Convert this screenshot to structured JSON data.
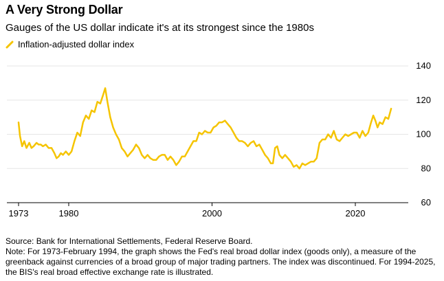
{
  "header": {
    "title": "A Very Strong Dollar",
    "subtitle": "Gauges of the US dollar indicate it's at its strongest since the 1980s"
  },
  "footer": {
    "source": "Source: Bank for International Settlements, Federal Reserve Board.",
    "note": "Note: For 1973-February 1994, the graph shows the Fed's real broad dollar index (goods only), a measure of the greenback against currencies of a broad group of major trading partners. The index was discontinued. For 1994-2025, the BIS's real broad effective exchange rate is illustrated."
  },
  "colors": {
    "line": "#f5c400",
    "grid": "#e6e6e6",
    "axis": "#000000"
  },
  "chart_data": {
    "type": "line",
    "title": "A Very Strong Dollar",
    "subtitle": "Gauges of the US dollar indicate it's at its strongest since the 1980s",
    "xlabel": "",
    "ylabel": "",
    "xlim": [
      1973,
      2025.5
    ],
    "ylim": [
      60,
      140
    ],
    "x_ticks": [
      1973,
      1980,
      2000,
      2020
    ],
    "y_ticks": [
      60,
      80,
      100,
      120,
      140
    ],
    "grid": true,
    "legend": "top-left",
    "series": [
      {
        "name": "Inflation-adjusted dollar index",
        "x": [
          1973.0,
          1973.2,
          1973.5,
          1973.8,
          1974.1,
          1974.5,
          1974.8,
          1975.1,
          1975.5,
          1975.8,
          1976.1,
          1976.4,
          1976.8,
          1977.2,
          1977.6,
          1978.0,
          1978.3,
          1978.6,
          1978.9,
          1979.2,
          1979.6,
          1980.0,
          1980.4,
          1980.8,
          1981.2,
          1981.6,
          1982.0,
          1982.4,
          1982.8,
          1983.2,
          1983.6,
          1984.0,
          1984.4,
          1984.8,
          1985.1,
          1985.4,
          1985.8,
          1986.2,
          1986.6,
          1987.0,
          1987.4,
          1987.8,
          1988.2,
          1988.6,
          1989.0,
          1989.4,
          1989.8,
          1990.2,
          1990.6,
          1991.0,
          1991.4,
          1991.8,
          1992.2,
          1992.6,
          1993.0,
          1993.4,
          1993.8,
          1994.2,
          1994.6,
          1995.0,
          1995.4,
          1995.8,
          1996.2,
          1996.6,
          1997.0,
          1997.4,
          1997.8,
          1998.2,
          1998.6,
          1999.0,
          1999.4,
          1999.8,
          2000.2,
          2000.6,
          2001.0,
          2001.4,
          2001.8,
          2002.2,
          2002.6,
          2003.0,
          2003.4,
          2003.8,
          2004.2,
          2004.6,
          2005.0,
          2005.4,
          2005.8,
          2006.2,
          2006.6,
          2007.0,
          2007.4,
          2007.8,
          2008.2,
          2008.5,
          2008.8,
          2009.1,
          2009.4,
          2009.8,
          2010.2,
          2010.6,
          2011.0,
          2011.4,
          2011.8,
          2012.2,
          2012.6,
          2013.0,
          2013.4,
          2013.8,
          2014.2,
          2014.6,
          2015.0,
          2015.4,
          2015.8,
          2016.2,
          2016.6,
          2017.0,
          2017.4,
          2017.8,
          2018.2,
          2018.6,
          2019.0,
          2019.4,
          2019.8,
          2020.2,
          2020.6,
          2021.0,
          2021.4,
          2021.8,
          2022.2,
          2022.5,
          2022.8,
          2023.1,
          2023.4,
          2023.8,
          2024.2,
          2024.6,
          2025.0
        ],
        "values": [
          107,
          99,
          93,
          96,
          92,
          95,
          92,
          93,
          95,
          94,
          94,
          93,
          94,
          92,
          92,
          89,
          86,
          87,
          89,
          88,
          90,
          88,
          90,
          96,
          101,
          99,
          107,
          111,
          109,
          114,
          113,
          119,
          118,
          123,
          127,
          119,
          110,
          104,
          100,
          97,
          92,
          90,
          87,
          89,
          91,
          94,
          92,
          88,
          86,
          88,
          86,
          85,
          85,
          87,
          88,
          88,
          85,
          87,
          85,
          82,
          84,
          87,
          87,
          90,
          93,
          96,
          96,
          101,
          100,
          102,
          101,
          101,
          104,
          105,
          107,
          107,
          108,
          106,
          104,
          101,
          98,
          96,
          96,
          95,
          93,
          95,
          96,
          93,
          94,
          91,
          88,
          86,
          83,
          83,
          92,
          93,
          88,
          86,
          88,
          86,
          84,
          81,
          82,
          80,
          83,
          82,
          83,
          84,
          84,
          86,
          95,
          97,
          97,
          100,
          98,
          102,
          97,
          96,
          98,
          100,
          99,
          100,
          101,
          101,
          98,
          102,
          99,
          101,
          107,
          111,
          108,
          104,
          107,
          106,
          110,
          109,
          115
        ]
      }
    ]
  }
}
